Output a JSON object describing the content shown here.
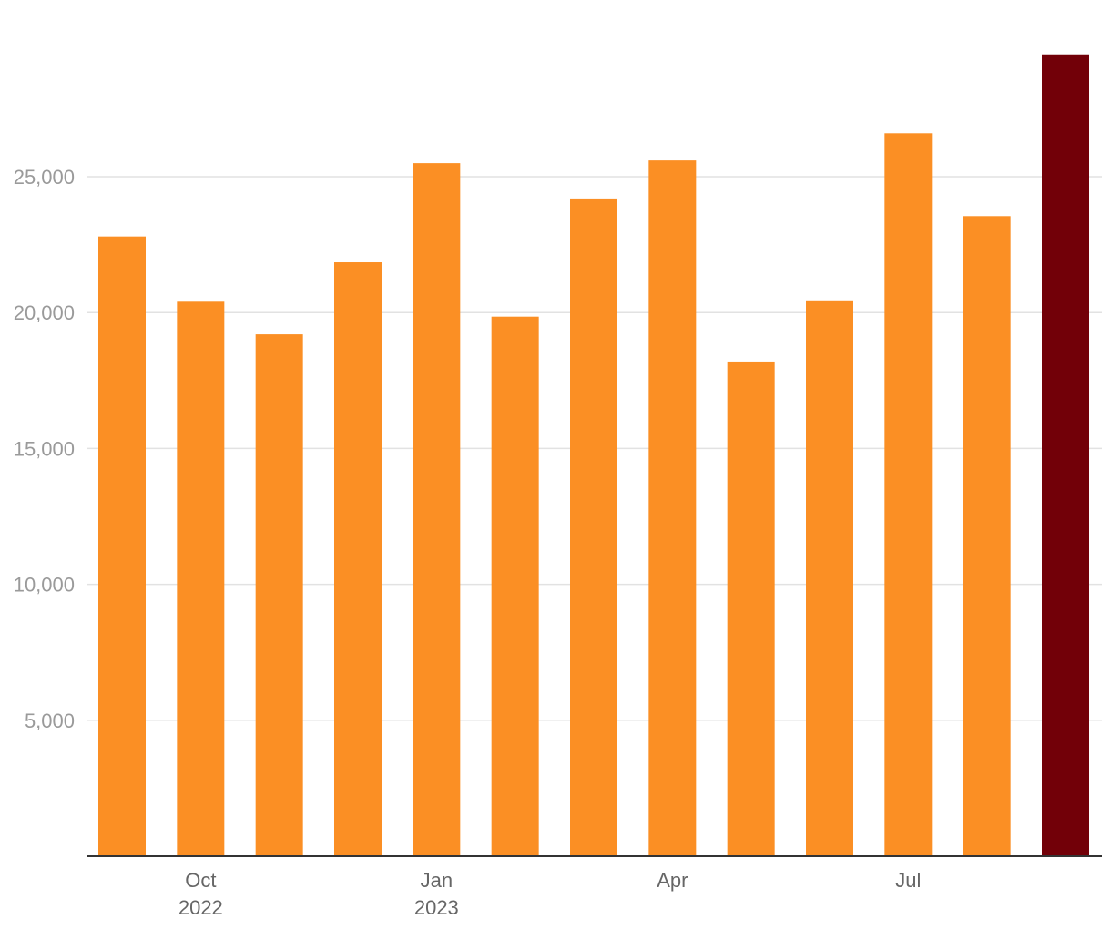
{
  "chart_data": {
    "type": "bar",
    "x": [
      "2022-09",
      "2022-10",
      "2022-11",
      "2022-12",
      "2023-01",
      "2023-02",
      "2023-03",
      "2023-04",
      "2023-05",
      "2023-06",
      "2023-07",
      "2023-08",
      "2023-09"
    ],
    "values": [
      22800,
      20400,
      19200,
      21850,
      25500,
      19850,
      24200,
      25600,
      18200,
      20450,
      26600,
      23550,
      29500
    ],
    "colors": [
      "#fb8f24",
      "#fb8f24",
      "#fb8f24",
      "#fb8f24",
      "#fb8f24",
      "#fb8f24",
      "#fb8f24",
      "#fb8f24",
      "#fb8f24",
      "#fb8f24",
      "#fb8f24",
      "#fb8f24",
      "#720008"
    ],
    "ylim": [
      0,
      31000
    ],
    "y_ticks": [
      {
        "value": 5000,
        "label": "5,000"
      },
      {
        "value": 10000,
        "label": "10,000"
      },
      {
        "value": 15000,
        "label": "15,000"
      },
      {
        "value": 20000,
        "label": "20,000"
      },
      {
        "value": 25000,
        "label": "25,000"
      }
    ],
    "x_tick_labels": [
      {
        "index": 1,
        "line1": "Oct",
        "line2": "2022"
      },
      {
        "index": 4,
        "line1": "Jan",
        "line2": "2023"
      },
      {
        "index": 7,
        "line1": "Apr",
        "line2": ""
      },
      {
        "index": 10,
        "line1": "Jul",
        "line2": ""
      }
    ],
    "grid": true,
    "legend": "none",
    "title": "",
    "xlabel": "",
    "ylabel": ""
  }
}
